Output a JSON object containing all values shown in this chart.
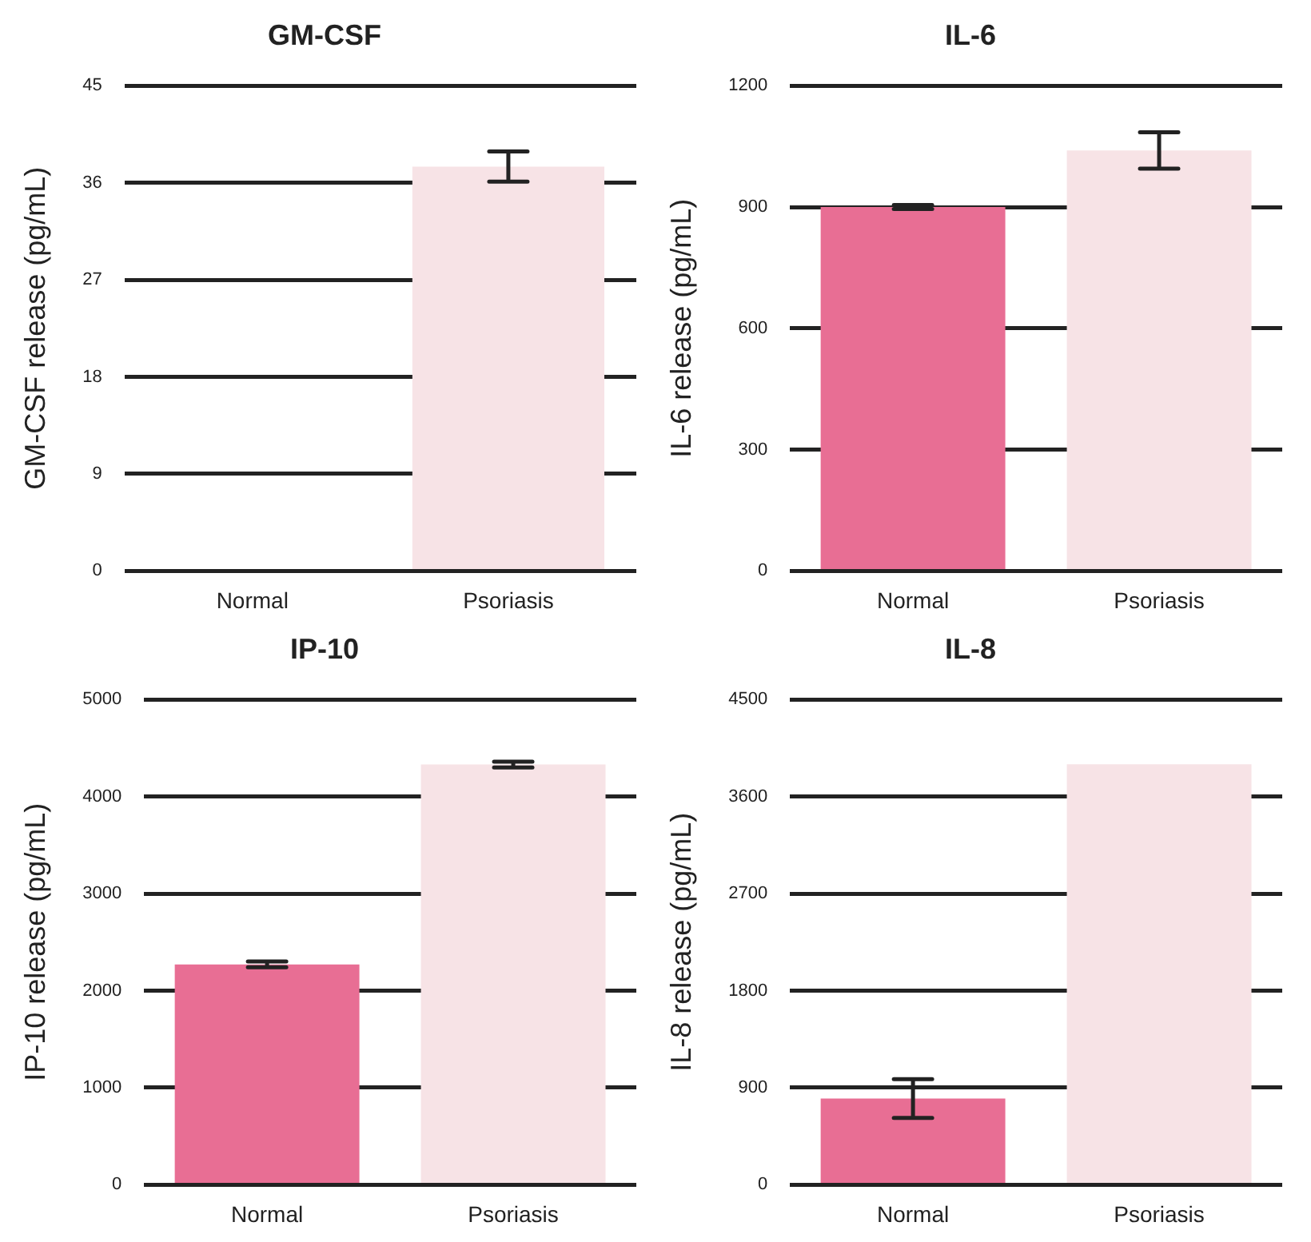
{
  "chart_data": [
    {
      "type": "bar",
      "title": "GM-CSF",
      "ylabel": "GM-CSF release (pg/mL)",
      "categories": [
        "Normal",
        "Psoriasis"
      ],
      "values": [
        0,
        37.5
      ],
      "colors": [
        "#e86e94",
        "#f7e3e6"
      ],
      "errors": [
        null,
        1.4
      ],
      "ylim": [
        0,
        45
      ],
      "yticks": [
        0,
        9,
        18,
        27,
        36,
        45
      ],
      "grid": "y",
      "legend": false
    },
    {
      "type": "bar",
      "title": "IL-6",
      "ylabel": "IL-6 release (pg/mL)",
      "categories": [
        "Normal",
        "Psoriasis"
      ],
      "values": [
        900,
        1040
      ],
      "colors": [
        "#e86e94",
        "#f7e3e6"
      ],
      "errors": [
        5,
        45
      ],
      "ylim": [
        0,
        1200
      ],
      "yticks": [
        0,
        300,
        600,
        900,
        1200
      ],
      "grid": "y",
      "legend": false
    },
    {
      "type": "bar",
      "title": "IP-10",
      "ylabel": "IP-10 release (pg/mL)",
      "categories": [
        "Normal",
        "Psoriasis"
      ],
      "values": [
        2270,
        4330
      ],
      "colors": [
        "#e86e94",
        "#f7e3e6"
      ],
      "errors": [
        30,
        30
      ],
      "ylim": [
        0,
        5000
      ],
      "yticks": [
        0,
        1000,
        2000,
        3000,
        4000,
        5000
      ],
      "grid": "y",
      "legend": false
    },
    {
      "type": "bar",
      "title": "IL-8",
      "ylabel": "IL-8 release (pg/mL)",
      "categories": [
        "Normal",
        "Psoriasis"
      ],
      "values": [
        800,
        3900
      ],
      "colors": [
        "#e86e94",
        "#f7e3e6"
      ],
      "errors": [
        180,
        null
      ],
      "ylim": [
        0,
        4500
      ],
      "yticks": [
        0,
        900,
        1800,
        2700,
        3600,
        4500
      ],
      "grid": "y",
      "legend": false
    }
  ]
}
